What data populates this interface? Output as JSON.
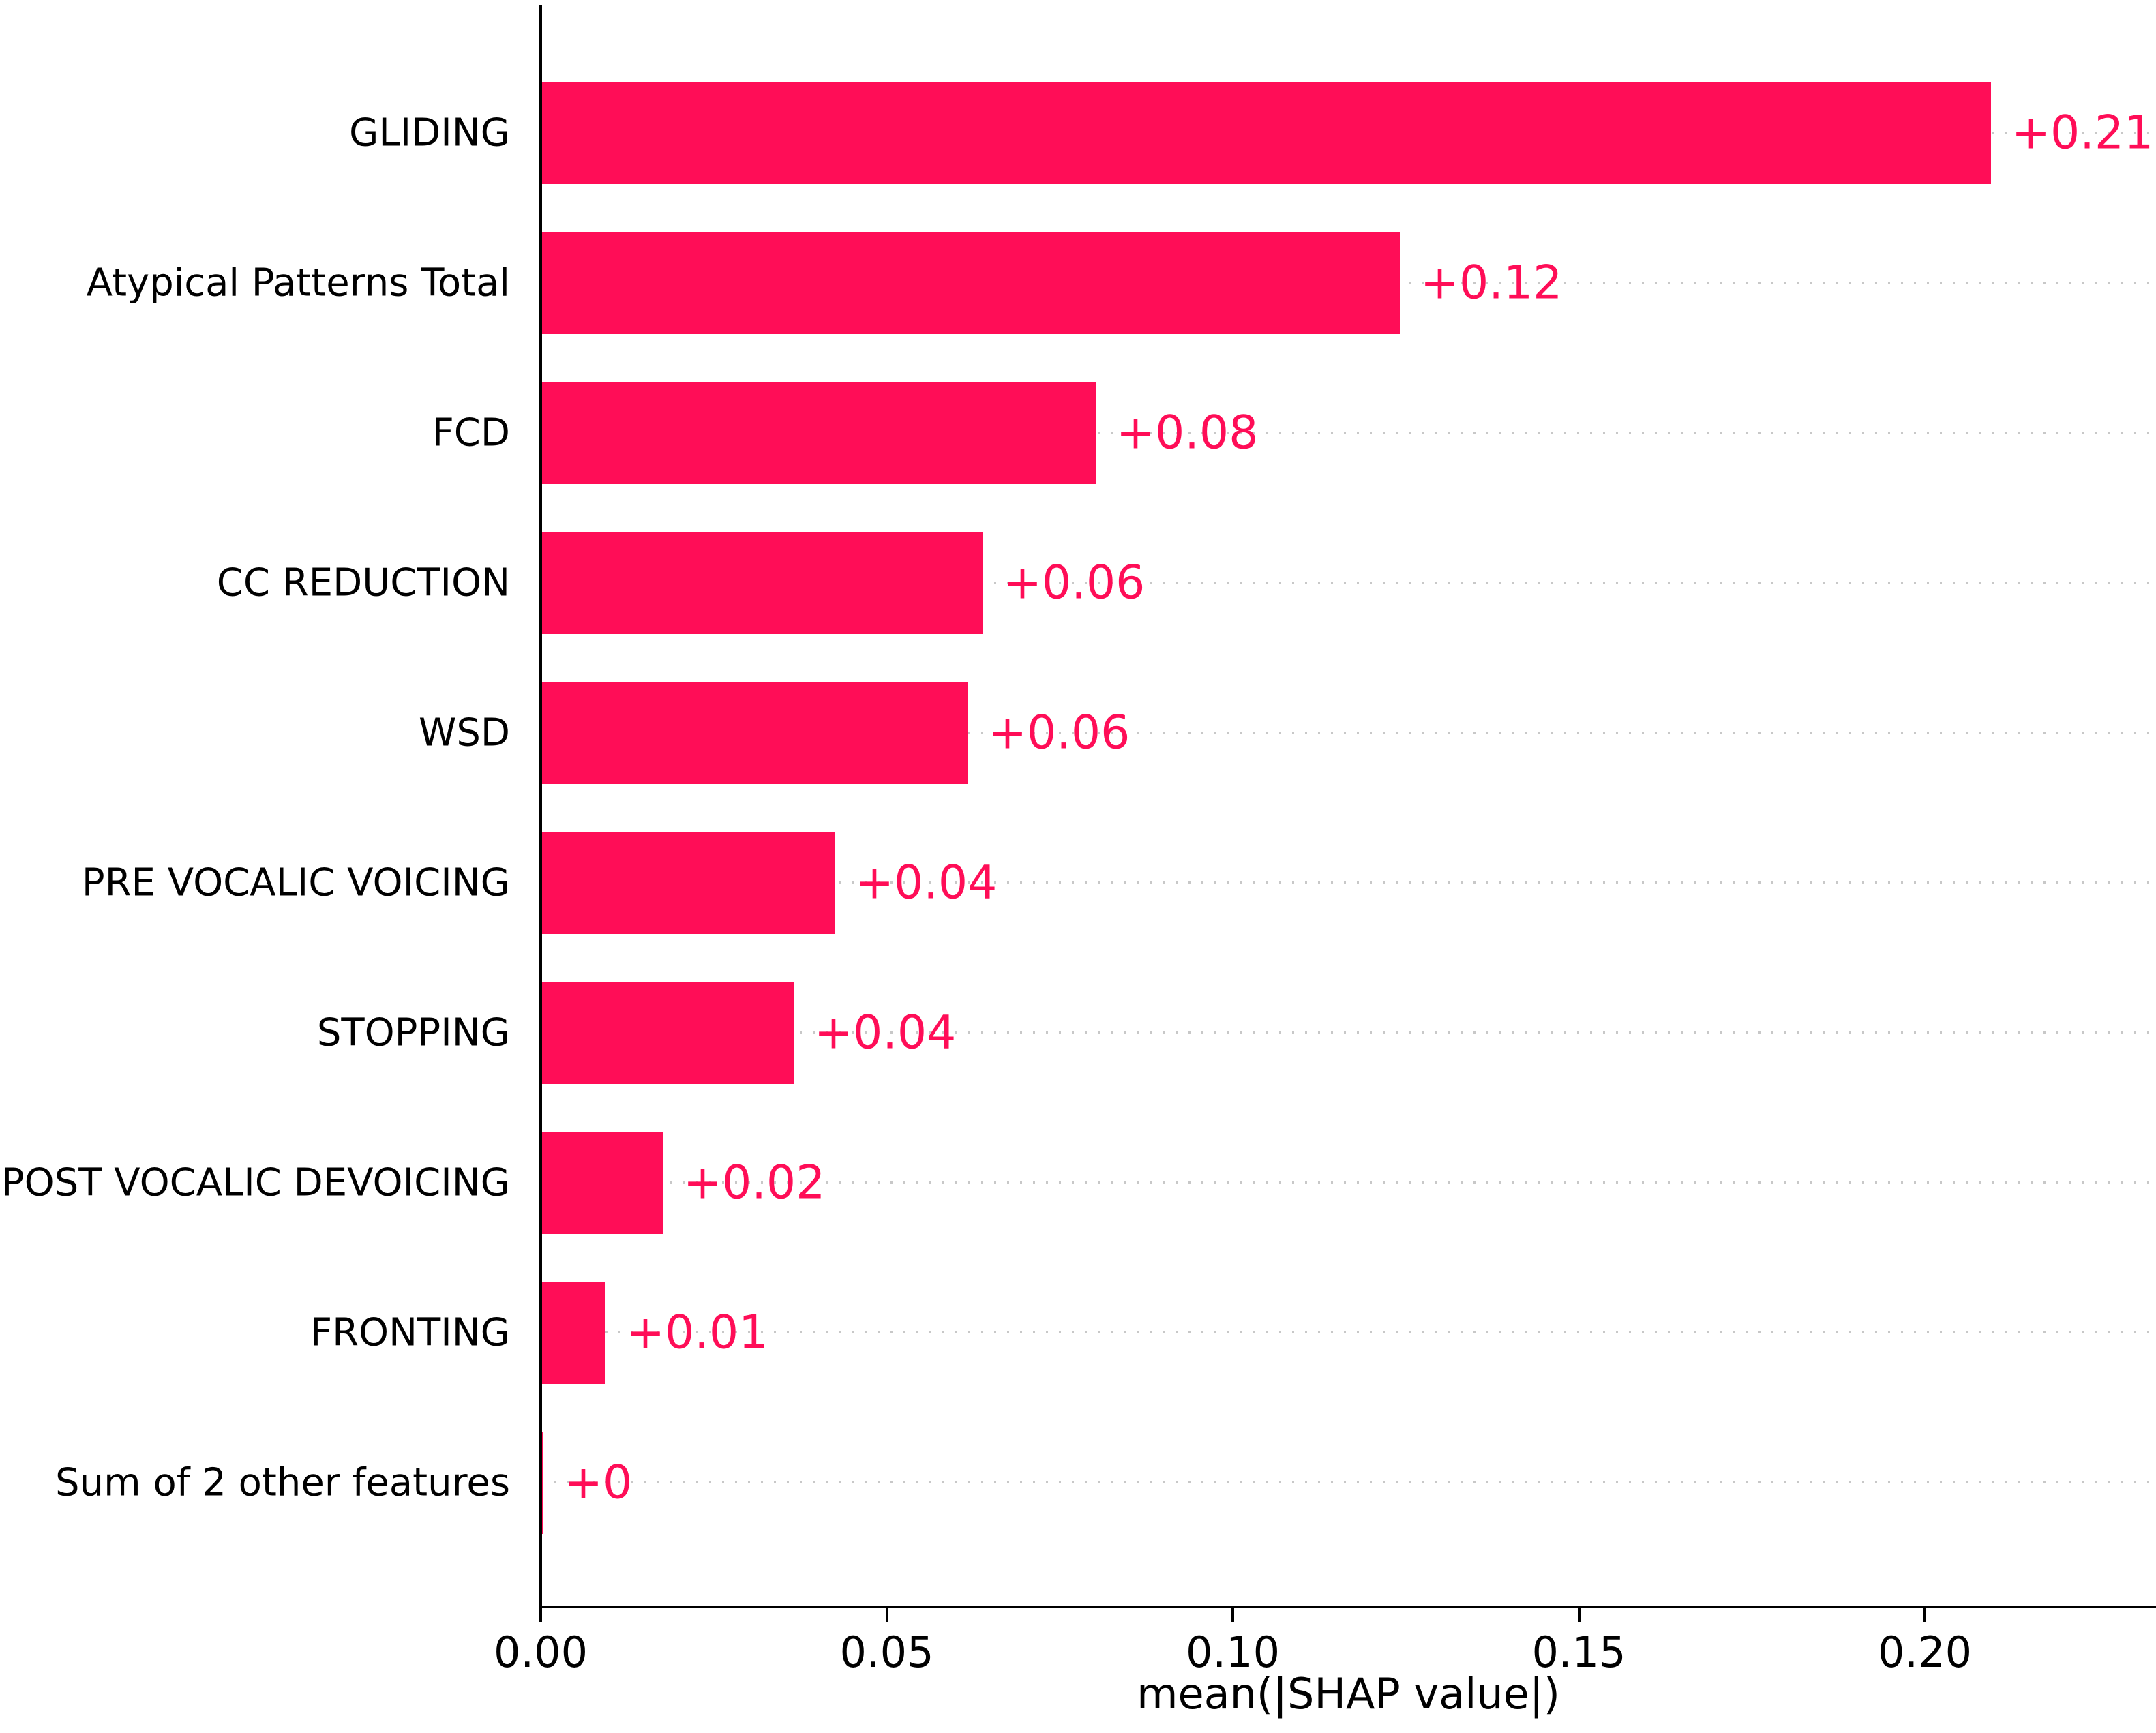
{
  "chart_data": {
    "type": "bar",
    "orientation": "horizontal",
    "xlabel": "mean(|SHAP value|)",
    "categories": [
      "GLIDING",
      "Atypical Patterns Total",
      "FCD",
      "CC REDUCTION",
      "WSD",
      "PRE VOCALIC VOICING",
      "STOPPING",
      "POST VOCALIC DEVOICING",
      "FRONTING",
      "Sum of 2 other features"
    ],
    "values": [
      0.21,
      0.12,
      0.08,
      0.06,
      0.06,
      0.04,
      0.04,
      0.02,
      0.01,
      0
    ],
    "value_labels": [
      "+0.21",
      "+0.12",
      "+0.08",
      "+0.06",
      "+0.06",
      "+0.04",
      "+0.04",
      "+0.02",
      "+0.01",
      "+0"
    ],
    "bar_lengths_axis_units": [
      0.2094,
      0.1239,
      0.08,
      0.0636,
      0.0615,
      0.0423,
      0.0364,
      0.0174,
      0.0092,
      0.0002
    ],
    "x_ticks": [
      {
        "label": "0.00",
        "value": 0
      },
      {
        "label": "0.05",
        "value": 0.05
      },
      {
        "label": "0.10",
        "value": 0.1
      },
      {
        "label": "0.15",
        "value": 0.15
      },
      {
        "label": "0.20",
        "value": 0.2
      }
    ],
    "xlim": [
      0,
      0.2334
    ],
    "bar_color": "#ff0d57",
    "value_label_color": "#ff0d57",
    "grid": {
      "style": "dotted",
      "axis": "rows",
      "color": "#c8c8c8"
    }
  }
}
